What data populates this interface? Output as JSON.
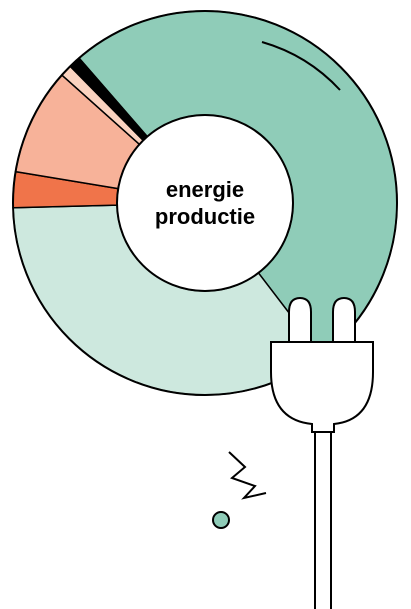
{
  "chart_data": {
    "type": "donut",
    "title_lines": [
      "energie",
      "productie"
    ],
    "categories": [
      null,
      null,
      null,
      null,
      null,
      null
    ],
    "values": [
      51,
      35,
      3,
      9,
      1,
      1
    ],
    "colors": [
      "#8fccb8",
      "#cde8de",
      "#f0744a",
      "#f7b299",
      "#fbd3c0",
      "#000000"
    ]
  }
}
